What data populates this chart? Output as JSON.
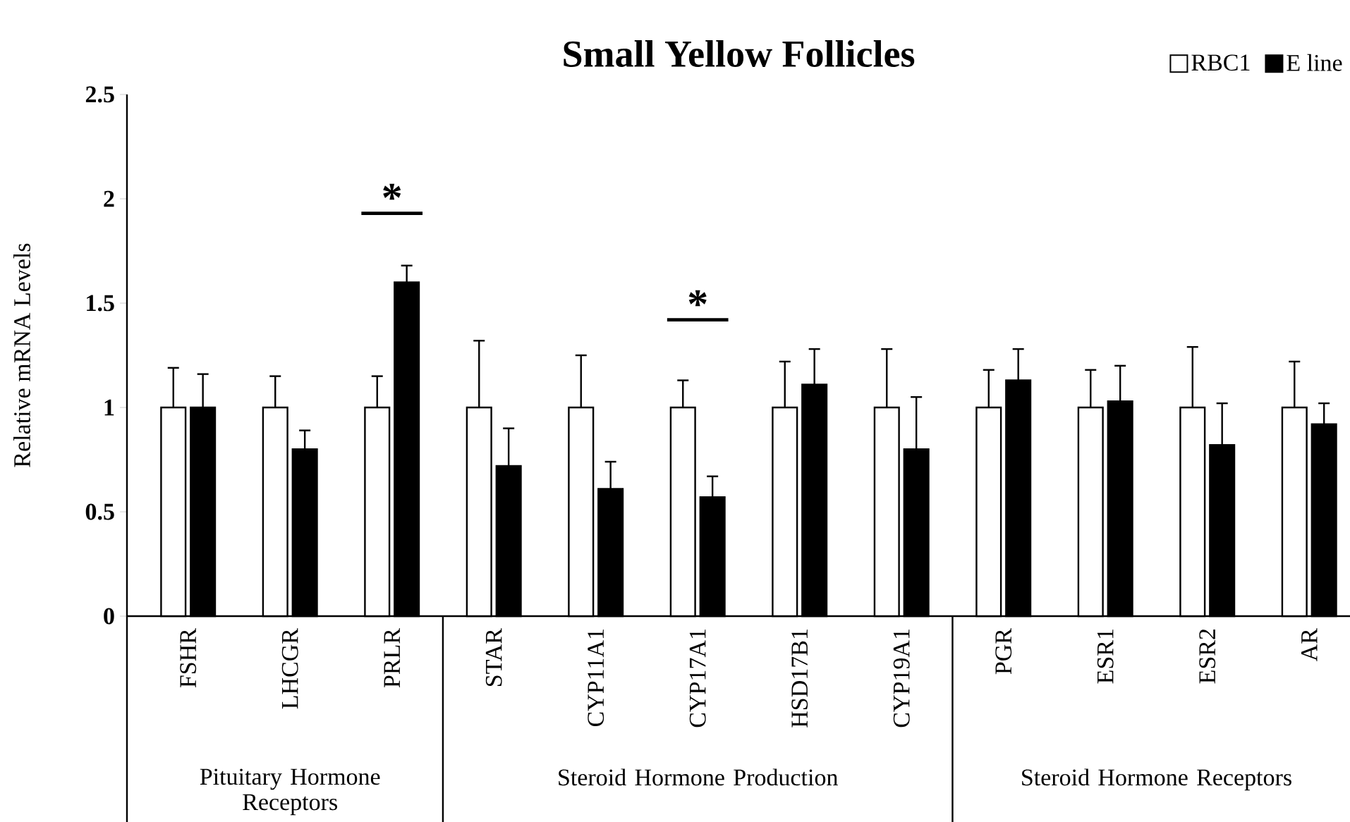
{
  "chart_data": {
    "type": "bar",
    "title": "Small Yellow Follicles",
    "ylabel": "Relative mRNA Levels",
    "categories": [
      "FSHR",
      "LHCGR",
      "PRLR",
      "STAR",
      "CYP11A1",
      "CYP17A1",
      "HSD17B1",
      "CYP19A1",
      "PGR",
      "ESR1",
      "ESR2",
      "AR"
    ],
    "series": [
      {
        "name": "RBC1",
        "color": "#ffffff",
        "values": [
          1,
          1,
          1,
          1,
          1,
          1,
          1,
          1,
          1,
          1,
          1,
          1
        ],
        "errors": [
          [
            1,
            1.19
          ],
          [
            1,
            1.15
          ],
          [
            1,
            1.15
          ],
          [
            1,
            1.32
          ],
          [
            1,
            1.25
          ],
          [
            1,
            1.13
          ],
          [
            1,
            1.22
          ],
          [
            1,
            1.28
          ],
          [
            1,
            1.18
          ],
          [
            1,
            1.18
          ],
          [
            1,
            1.29
          ],
          [
            1,
            1.22
          ]
        ]
      },
      {
        "name": "E line",
        "color": "#000000",
        "values": [
          1,
          0.8,
          1.6,
          0.72,
          0.61,
          0.57,
          1.11,
          0.8,
          1.13,
          1.03,
          0.82,
          0.92
        ],
        "errors": [
          [
            1,
            1.16
          ],
          [
            0.8,
            0.89
          ],
          [
            1.6,
            1.68
          ],
          [
            0.72,
            0.9
          ],
          [
            0.61,
            0.74
          ],
          [
            0.57,
            0.67
          ],
          [
            1.11,
            1.28
          ],
          [
            0.8,
            1.05
          ],
          [
            1.13,
            1.28
          ],
          [
            1.03,
            1.2
          ],
          [
            0.82,
            1.02
          ],
          [
            0.92,
            1.02
          ]
        ]
      }
    ],
    "ylim": [
      0,
      2.5
    ],
    "yticks": [
      0,
      0.5,
      1,
      1.5,
      2,
      2.5
    ],
    "grid": false,
    "legend": "top right",
    "annotations": [
      "*",
      "*",
      "Pituitary Hormone Receptors",
      "Steroid Hormone Production",
      "Steroid Hormone Receptors"
    ]
  }
}
